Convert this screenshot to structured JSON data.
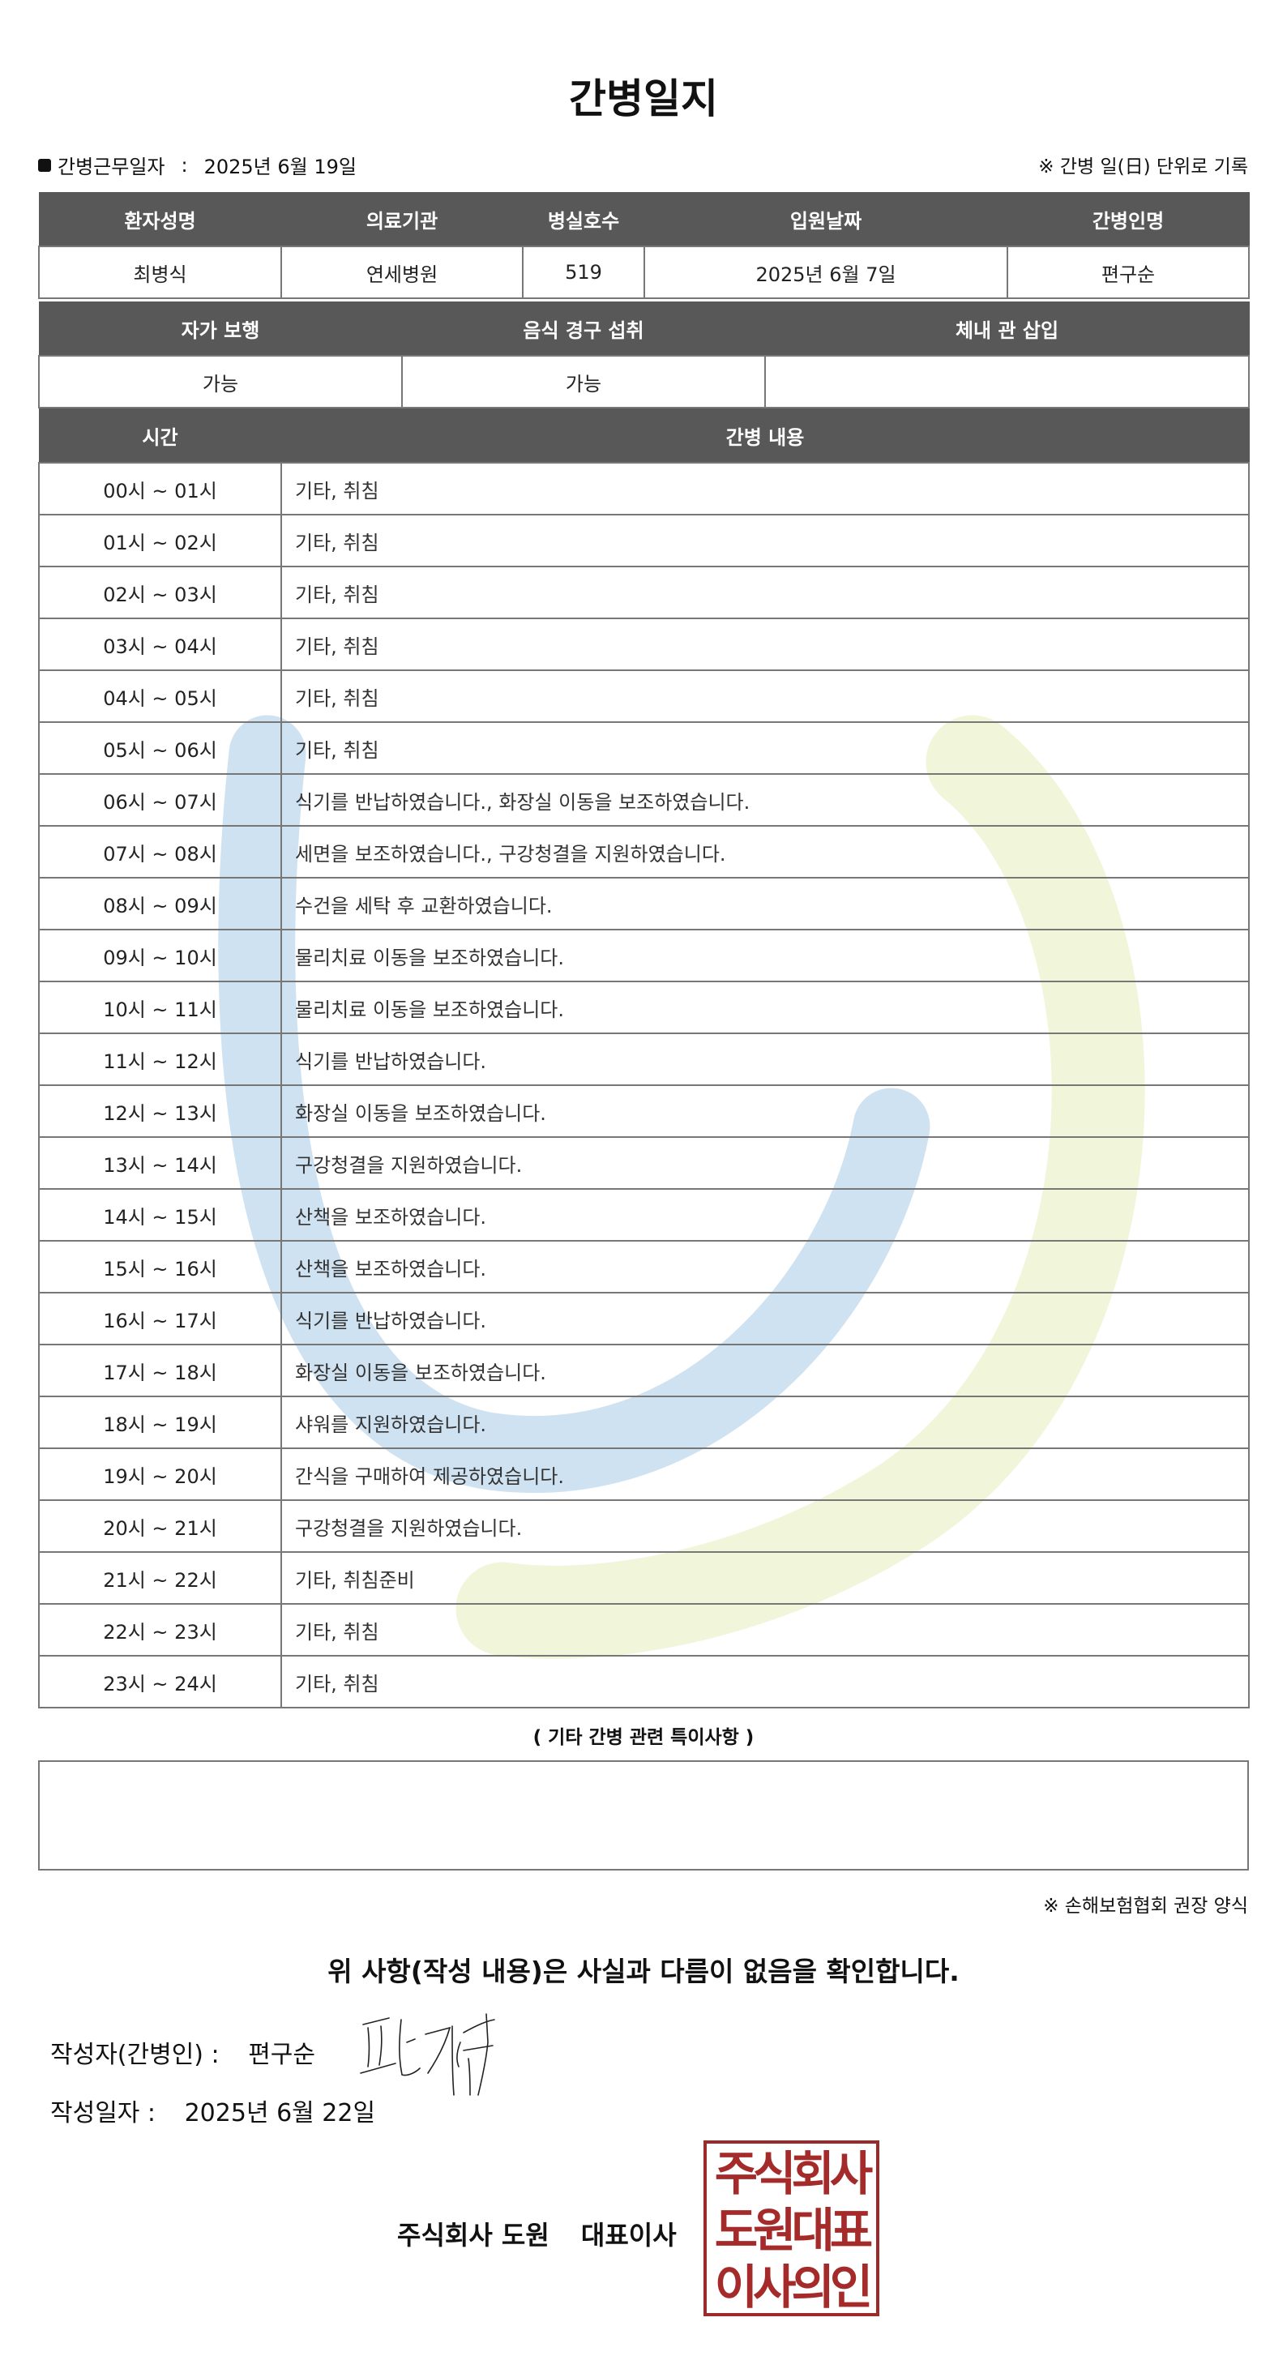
{
  "title": "간병일지",
  "work_date": {
    "label": "간병근무일자",
    "separator": ":",
    "value": "2025년 6월 19일"
  },
  "record_note": "※ 간병 일(日) 단위로 기록",
  "patient_table": {
    "headers": [
      "환자성명",
      "의료기관",
      "병실호수",
      "입원날짜",
      "간병인명"
    ],
    "values": [
      "최병식",
      "연세병원",
      "519",
      "2025년 6월 7일",
      "편구순"
    ]
  },
  "status_table": {
    "headers": [
      "자가 보행",
      "음식 경구 섭취",
      "체내 관 삽입"
    ],
    "values": [
      "가능",
      "가능",
      ""
    ]
  },
  "care_table": {
    "headers": [
      "시간",
      "간병 내용"
    ],
    "rows": [
      {
        "time": "00시 ~ 01시",
        "content": "기타, 취침"
      },
      {
        "time": "01시 ~ 02시",
        "content": "기타, 취침"
      },
      {
        "time": "02시 ~ 03시",
        "content": "기타, 취침"
      },
      {
        "time": "03시 ~ 04시",
        "content": "기타, 취침"
      },
      {
        "time": "04시 ~ 05시",
        "content": "기타, 취침"
      },
      {
        "time": "05시 ~ 06시",
        "content": "기타, 취침"
      },
      {
        "time": "06시 ~ 07시",
        "content": "식기를 반납하였습니다., 화장실 이동을 보조하였습니다."
      },
      {
        "time": "07시 ~ 08시",
        "content": "세면을 보조하였습니다., 구강청결을 지원하였습니다."
      },
      {
        "time": "08시 ~ 09시",
        "content": "수건을 세탁 후 교환하였습니다."
      },
      {
        "time": "09시 ~ 10시",
        "content": "물리치료 이동을 보조하였습니다."
      },
      {
        "time": "10시 ~ 11시",
        "content": "물리치료 이동을 보조하였습니다."
      },
      {
        "time": "11시 ~ 12시",
        "content": "식기를 반납하였습니다."
      },
      {
        "time": "12시 ~ 13시",
        "content": "화장실 이동을 보조하였습니다."
      },
      {
        "time": "13시 ~ 14시",
        "content": "구강청결을 지원하였습니다."
      },
      {
        "time": "14시 ~ 15시",
        "content": "산책을 보조하였습니다."
      },
      {
        "time": "15시 ~ 16시",
        "content": "산책을 보조하였습니다."
      },
      {
        "time": "16시 ~ 17시",
        "content": "식기를 반납하였습니다."
      },
      {
        "time": "17시 ~ 18시",
        "content": "화장실 이동을 보조하였습니다."
      },
      {
        "time": "18시 ~ 19시",
        "content": "샤워를 지원하였습니다."
      },
      {
        "time": "19시 ~ 20시",
        "content": "간식을 구매하여 제공하였습니다."
      },
      {
        "time": "20시 ~ 21시",
        "content": "구강청결을 지원하였습니다."
      },
      {
        "time": "21시 ~ 22시",
        "content": "기타, 취침준비"
      },
      {
        "time": "22시 ~ 23시",
        "content": "기타, 취침"
      },
      {
        "time": "23시 ~ 24시",
        "content": "기타, 취침"
      }
    ]
  },
  "special_notes": {
    "title": "( 기타 간병 관련 특이사항 )",
    "value": ""
  },
  "form_note": "※ 손해보험협회 권장 양식",
  "confirmation": "위 사항(작성 내용)은 사실과 다름이 없음을 확인합니다.",
  "writer": {
    "label": "작성자(간병인) :",
    "name": "편구순"
  },
  "written_date": {
    "label": "작성일자 :",
    "value": "2025년 6월 22일"
  },
  "company": {
    "name": "주식회사 도원",
    "title": "대표이사"
  },
  "seal_text": [
    "주식회사",
    "도원대표",
    "이사의인"
  ],
  "colors": {
    "header_bg": "#585858",
    "seal": "#a52a2a",
    "watermark_blue": "#c7ddef",
    "watermark_green": "#eef3d3"
  }
}
